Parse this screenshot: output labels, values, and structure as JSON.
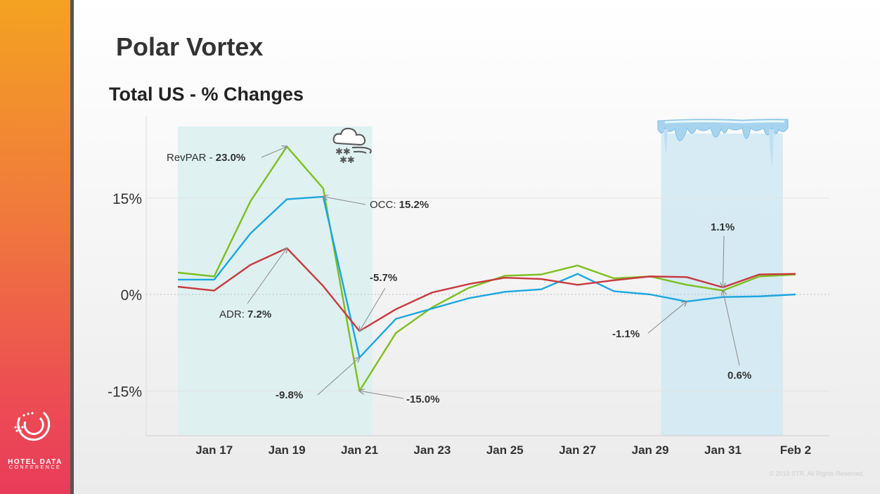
{
  "slide": {
    "title": "Polar Vortex",
    "subtitle": "Total US - % Changes",
    "copyright": "© 2019 STR. All Rights Reserved.",
    "logo_line1": "HOTEL DATA",
    "logo_line2": "CONFERENCE"
  },
  "colors": {
    "revpar": "#7dbf1f",
    "occ": "#1ba6e0",
    "adr": "#c8393f",
    "vortex_band": "#dcf0f0",
    "late_band": "#d2e9f3"
  },
  "icons": [
    "snow-cloud-icon",
    "icicles-icon"
  ],
  "chart_data": {
    "type": "line",
    "x": [
      "Jan 16",
      "Jan 17",
      "Jan 18",
      "Jan 19",
      "Jan 20",
      "Jan 21",
      "Jan 22",
      "Jan 23",
      "Jan 24",
      "Jan 25",
      "Jan 26",
      "Jan 27",
      "Jan 28",
      "Jan 29",
      "Jan 30",
      "Jan 31",
      "Feb 1",
      "Feb 2"
    ],
    "x_tick_labels": [
      "Jan 17",
      "Jan 19",
      "Jan 21",
      "Jan 23",
      "Jan 25",
      "Jan 27",
      "Jan 29",
      "Jan 31",
      "Feb 2"
    ],
    "y_tick_labels": [
      "15%",
      "0%",
      "-15%"
    ],
    "y_ticks": [
      15,
      0,
      -15
    ],
    "ylim": [
      -22,
      26
    ],
    "grid": true,
    "series": [
      {
        "name": "RevPAR",
        "color": "#7dbf1f",
        "values": [
          3.4,
          2.8,
          14.5,
          23.0,
          16.5,
          -15.0,
          -6.0,
          -2.0,
          1.0,
          2.9,
          3.1,
          4.5,
          2.5,
          2.8,
          1.5,
          0.6,
          2.8,
          3.1
        ]
      },
      {
        "name": "OCC",
        "color": "#1ba6e0",
        "values": [
          2.3,
          2.3,
          9.5,
          14.8,
          15.2,
          -9.8,
          -3.8,
          -2.2,
          -0.6,
          0.4,
          0.8,
          3.2,
          0.5,
          0.0,
          -1.1,
          -0.4,
          -0.3,
          0.0
        ]
      },
      {
        "name": "ADR",
        "color": "#c8393f",
        "values": [
          1.2,
          0.6,
          4.6,
          7.2,
          1.3,
          -5.7,
          -2.3,
          0.3,
          1.6,
          2.6,
          2.4,
          1.5,
          2.2,
          2.8,
          2.7,
          1.1,
          3.1,
          3.2
        ]
      }
    ],
    "highlight_bands": [
      {
        "name": "polar-vortex-period",
        "from": 16.0,
        "to": 21.35
      },
      {
        "name": "late-january-period",
        "from": 29.3,
        "to": 32.65
      }
    ],
    "annotations": [
      {
        "prefix": "RevPAR - ",
        "value": "23.0%",
        "x": "Jan 19",
        "y": 23.0
      },
      {
        "prefix": "OCC: ",
        "value": "15.2%",
        "x": "Jan 20",
        "y": 15.2
      },
      {
        "prefix": "ADR: ",
        "value": "7.2%",
        "x": "Jan 19",
        "y": 7.2
      },
      {
        "prefix": "",
        "value": "-5.7%",
        "x": "Jan 21",
        "y": -5.7
      },
      {
        "prefix": "",
        "value": "-9.8%",
        "x": "Jan 21",
        "y": -9.8
      },
      {
        "prefix": "",
        "value": "-15.0%",
        "x": "Jan 21",
        "y": -15.0
      },
      {
        "prefix": "",
        "value": "1.1%",
        "x": "Jan 31",
        "y": 1.1
      },
      {
        "prefix": "",
        "value": "-1.1%",
        "x": "Jan 30",
        "y": -1.1
      },
      {
        "prefix": "",
        "value": "0.6%",
        "x": "Jan 31",
        "y": 0.6
      }
    ]
  }
}
